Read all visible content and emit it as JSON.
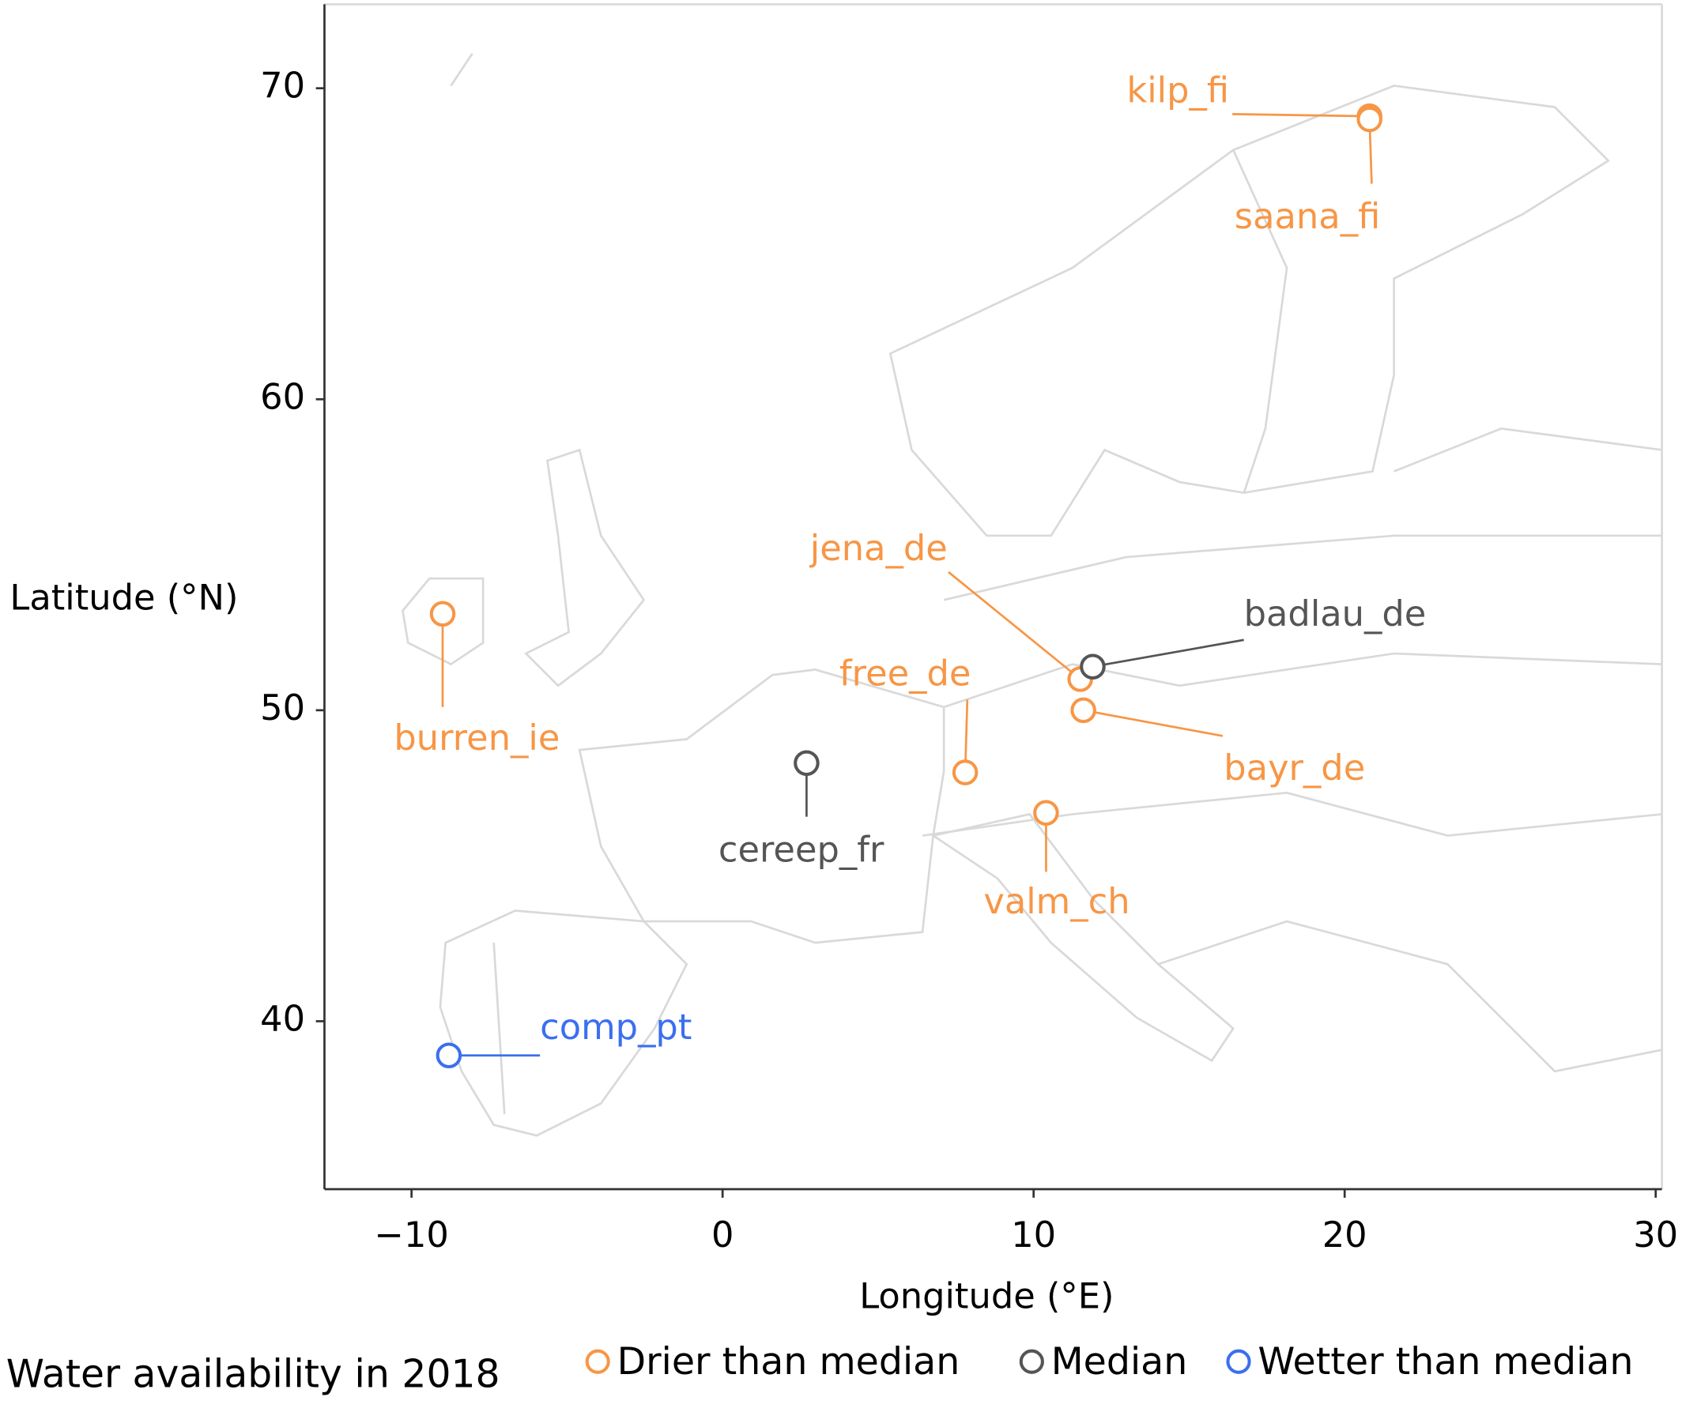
{
  "chart_data": {
    "type": "scatter",
    "x_label": "Longitude (°E)",
    "y_label": "Latitude (°N)",
    "legend_title": "Water availability in 2018",
    "xlim": [
      -12.8,
      30.2
    ],
    "ylim": [
      34.6,
      72.7
    ],
    "xticks": [
      {
        "value": -10,
        "label": "−10"
      },
      0,
      10,
      20,
      30
    ],
    "yticks": [
      40,
      50,
      60,
      70
    ],
    "series": [
      {
        "name": "Drier than median",
        "color": "#f79646",
        "labels": [
          "kilp_fi",
          "saana_fi",
          "jena_de",
          "bayr_de",
          "free_de",
          "valm_ch",
          "burren_ie"
        ],
        "x": [
          20.8,
          20.8,
          11.5,
          11.6,
          7.8,
          10.4,
          -9.0
        ],
        "y": [
          69.1,
          69.0,
          51.0,
          50.0,
          48.0,
          46.7,
          53.1
        ]
      },
      {
        "name": "Median",
        "color": "#555555",
        "labels": [
          "badlau_de",
          "cereep_fr"
        ],
        "x": [
          11.9,
          2.7
        ],
        "y": [
          51.4,
          48.3
        ]
      },
      {
        "name": "Wetter than median",
        "color": "#3a6ff0",
        "labels": [
          "comp_pt"
        ],
        "x": [
          -8.8
        ],
        "y": [
          38.9
        ]
      }
    ]
  }
}
